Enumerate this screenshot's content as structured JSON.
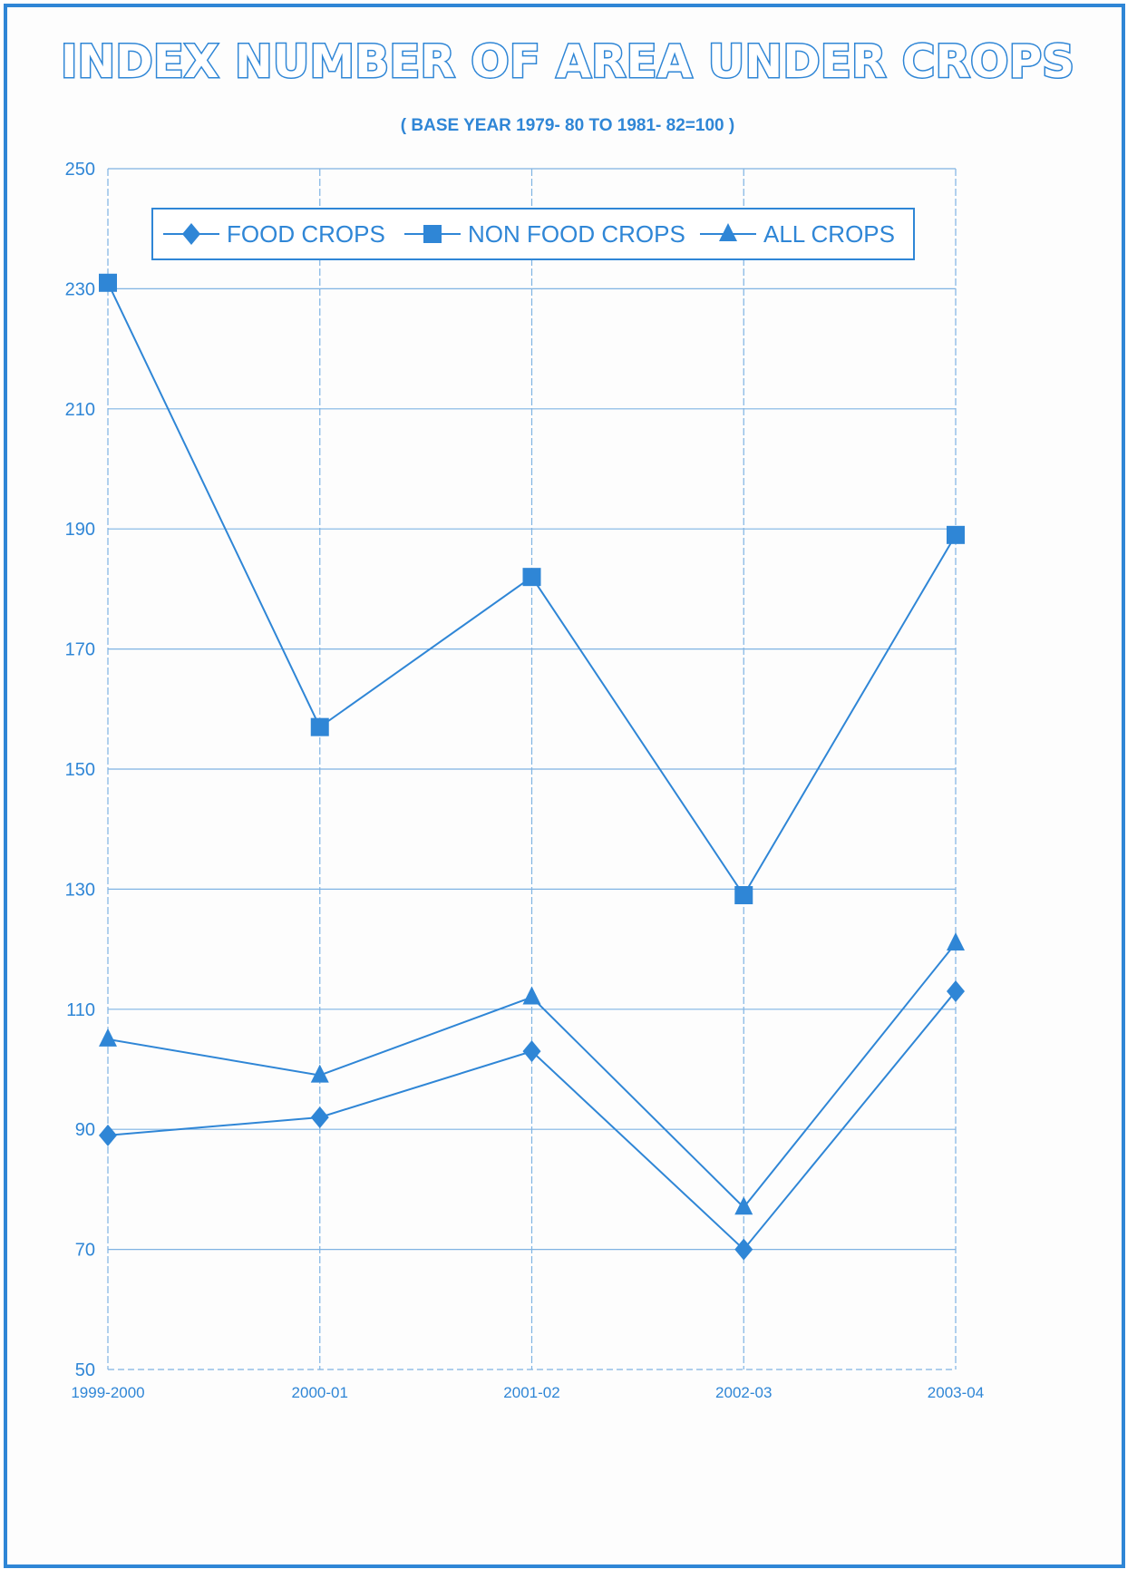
{
  "chart_data": {
    "type": "line",
    "title": "INDEX NUMBER OF AREA UNDER CROPS",
    "subtitle": "( BASE YEAR 1979- 80 TO 1981- 82=100 )",
    "categories": [
      "1999-2000",
      "2000-01",
      "2001-02",
      "2002-03",
      "2003-04"
    ],
    "ylim": [
      50,
      250
    ],
    "yticks": [
      50,
      70,
      90,
      110,
      130,
      150,
      170,
      190,
      210,
      230,
      250
    ],
    "grid": true,
    "legend_position": "top",
    "series": [
      {
        "name": "FOOD CROPS",
        "marker": "diamond",
        "values": [
          89,
          92,
          103,
          70,
          113
        ]
      },
      {
        "name": "NON FOOD CROPS",
        "marker": "square",
        "values": [
          231,
          157,
          182,
          129,
          189
        ]
      },
      {
        "name": "ALL CROPS",
        "marker": "triangle",
        "values": [
          105,
          99,
          112,
          77,
          121
        ]
      }
    ],
    "colors": {
      "line": "#2f86d6",
      "text": "#2f86d6",
      "grid": "#7fb3e3"
    }
  }
}
